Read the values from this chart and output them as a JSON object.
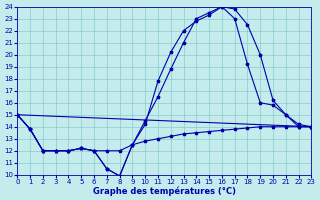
{
  "xlabel": "Graphe des températures (°C)",
  "bg_color": "#c4ecec",
  "line_color": "#0000aa",
  "grid_color": "#88cccc",
  "xmin": 0,
  "xmax": 23,
  "ymin": 10,
  "ymax": 24,
  "series": [
    {
      "x": [
        0,
        1,
        2,
        3,
        4,
        5,
        6,
        7,
        8,
        9,
        10,
        11,
        12,
        13,
        14,
        15,
        16,
        17,
        18,
        19,
        20,
        21,
        22,
        23
      ],
      "y": [
        15.0,
        13.8,
        12.0,
        12.0,
        12.0,
        12.2,
        12.0,
        10.5,
        9.9,
        12.5,
        14.2,
        17.8,
        20.2,
        22.0,
        22.8,
        23.3,
        24.0,
        23.8,
        22.5,
        20.0,
        16.2,
        15.0,
        14.0,
        14.0
      ]
    },
    {
      "x": [
        0,
        1,
        2,
        3,
        4,
        5,
        6,
        7,
        8,
        9,
        10,
        11,
        12,
        13,
        14,
        15,
        16,
        17,
        18,
        19,
        20,
        21,
        22,
        23
      ],
      "y": [
        15.0,
        13.8,
        12.0,
        12.0,
        12.0,
        12.2,
        12.0,
        10.5,
        9.9,
        12.5,
        14.5,
        16.5,
        18.8,
        21.0,
        23.0,
        23.5,
        24.0,
        23.0,
        19.2,
        16.0,
        15.8,
        15.0,
        14.2,
        14.0
      ]
    },
    {
      "x": [
        0,
        1,
        2,
        3,
        4,
        5,
        6,
        7,
        8,
        9,
        10,
        11,
        12,
        13,
        14,
        15,
        16,
        17,
        18,
        19,
        20,
        21,
        22,
        23
      ],
      "y": [
        15.0,
        13.8,
        12.0,
        12.0,
        12.0,
        12.2,
        12.0,
        12.0,
        12.0,
        12.5,
        12.8,
        13.0,
        13.2,
        13.4,
        13.5,
        13.6,
        13.7,
        13.8,
        13.9,
        14.0,
        14.0,
        14.0,
        14.0,
        14.0
      ]
    },
    {
      "x": [
        0,
        23
      ],
      "y": [
        15.0,
        14.0
      ]
    }
  ]
}
